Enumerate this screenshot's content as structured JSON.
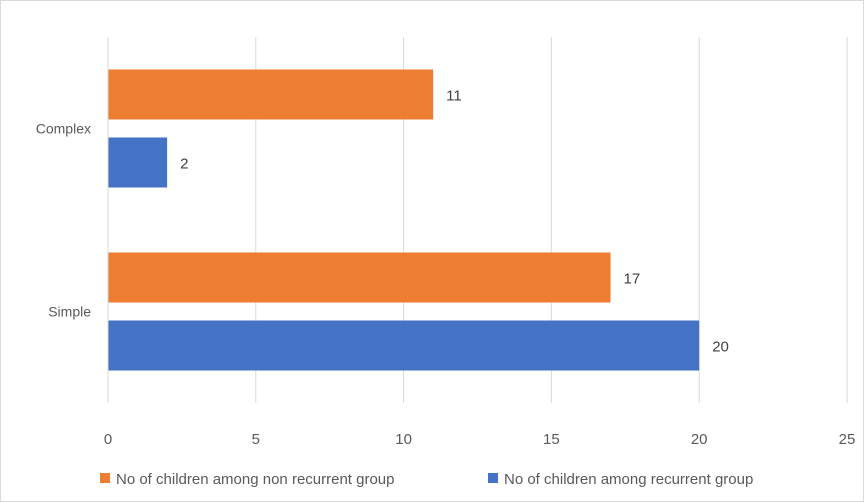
{
  "chart_data": {
    "type": "bar",
    "orientation": "horizontal",
    "title": "",
    "xlabel": "",
    "ylabel": "",
    "categories": [
      "Simple",
      "Complex"
    ],
    "series": [
      {
        "name": "No of children among recurrent group",
        "values": [
          20,
          2
        ],
        "color": "#4472c4"
      },
      {
        "name": "No of children among non recurrent group",
        "values": [
          17,
          11
        ],
        "color": "#ed7d31"
      }
    ],
    "legend_order": [
      1,
      0
    ],
    "xlim": [
      0,
      25
    ],
    "xticks": [
      0,
      5,
      10,
      15,
      20,
      25
    ],
    "grid": true,
    "legend_position": "bottom",
    "data_labels": true
  }
}
